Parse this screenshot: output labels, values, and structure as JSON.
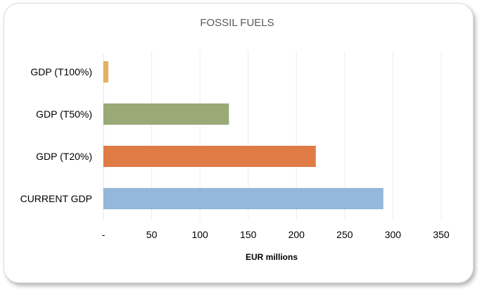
{
  "chart_data": {
    "type": "bar",
    "orientation": "horizontal",
    "title": "FOSSIL FUELS",
    "xlabel": "EUR millions",
    "ylabel": "",
    "categories": [
      "GDP (T100%)",
      "GDP (T50%)",
      "GDP (T20%)",
      "CURRENT GDP"
    ],
    "values": [
      5,
      130,
      220,
      290
    ],
    "colors": [
      "#e4b35a",
      "#9aaa76",
      "#e07b45",
      "#94b8dc"
    ],
    "xlim": [
      0,
      350
    ],
    "xticks": [
      0,
      50,
      100,
      150,
      200,
      250,
      300,
      350
    ],
    "xtick_labels": [
      "-",
      "50",
      "100",
      "150",
      "200",
      "250",
      "300",
      "350"
    ],
    "grid": true,
    "legend": "none"
  }
}
